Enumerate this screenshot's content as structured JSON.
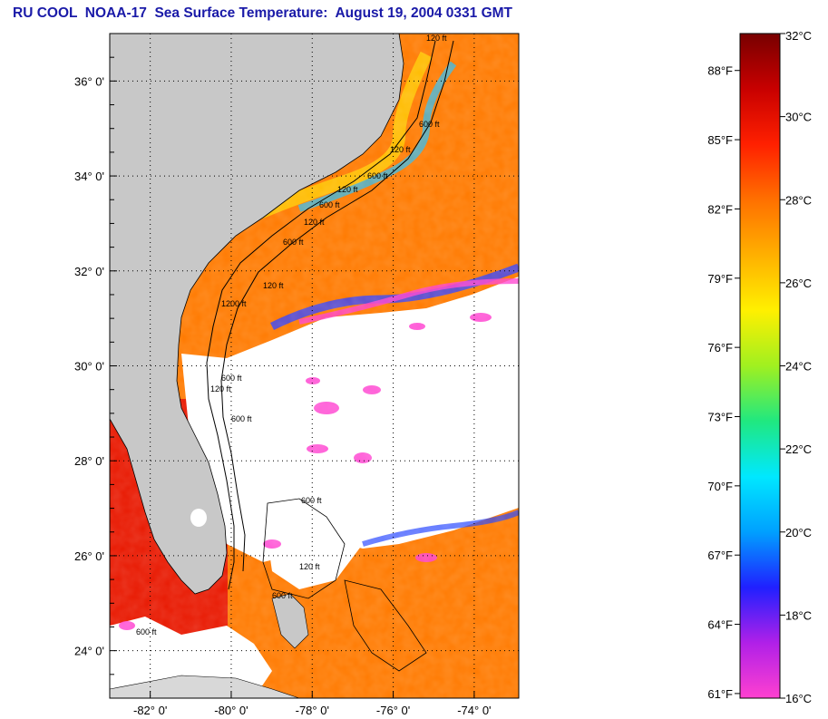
{
  "title": "RU COOL  NOAA-17  Sea Surface Temperature:  August 19, 2004 0331 GMT",
  "map": {
    "lon_range": [
      -83.0,
      -72.9
    ],
    "lat_range": [
      23.0,
      37.0
    ],
    "lat_labels": [
      "36° 0'",
      "34° 0'",
      "32° 0'",
      "30° 0'",
      "28° 0'",
      "26° 0'",
      "24° 0'"
    ],
    "lat_values": [
      36,
      34,
      32,
      30,
      28,
      26,
      24
    ],
    "lon_labels": [
      "-82° 0'",
      "-80° 0'",
      "-78° 0'",
      "-76° 0'",
      "-74° 0'"
    ],
    "lon_values": [
      -82,
      -80,
      -78,
      -76,
      -74
    ],
    "isobath_labels": [
      "120 ft",
      "600 ft",
      "120 ft",
      "600 ft",
      "120 ft",
      "600 ft",
      "120 ft",
      "600 ft",
      "120 ft",
      "1200 ft",
      "600 ft",
      "120 ft",
      "600 ft",
      "600 ft",
      "120 ft",
      "600 ft",
      "600 ft"
    ],
    "colors": {
      "land": "#c8c8c8",
      "cloud": "#ffffff",
      "frame": "#000000"
    }
  },
  "colorbar": {
    "celsius_labels": [
      "32°C",
      "30°C",
      "28°C",
      "26°C",
      "24°C",
      "22°C",
      "20°C",
      "18°C",
      "16°C"
    ],
    "celsius_values": [
      32,
      30,
      28,
      26,
      24,
      22,
      20,
      18,
      16
    ],
    "fahrenheit_labels": [
      "88°F",
      "85°F",
      "82°F",
      "79°F",
      "76°F",
      "73°F",
      "70°F",
      "67°F",
      "64°F",
      "61°F"
    ],
    "fahrenheit_values": [
      88,
      85,
      82,
      79,
      76,
      73,
      70,
      67,
      64,
      61
    ],
    "range_c": [
      16,
      32
    ],
    "stops": [
      "#ff40d0",
      "#b020e8",
      "#2020ff",
      "#00a0ff",
      "#00e8ff",
      "#20e880",
      "#a0f020",
      "#fff000",
      "#ffb000",
      "#ff7000",
      "#ff2000",
      "#c80000",
      "#780000"
    ]
  }
}
